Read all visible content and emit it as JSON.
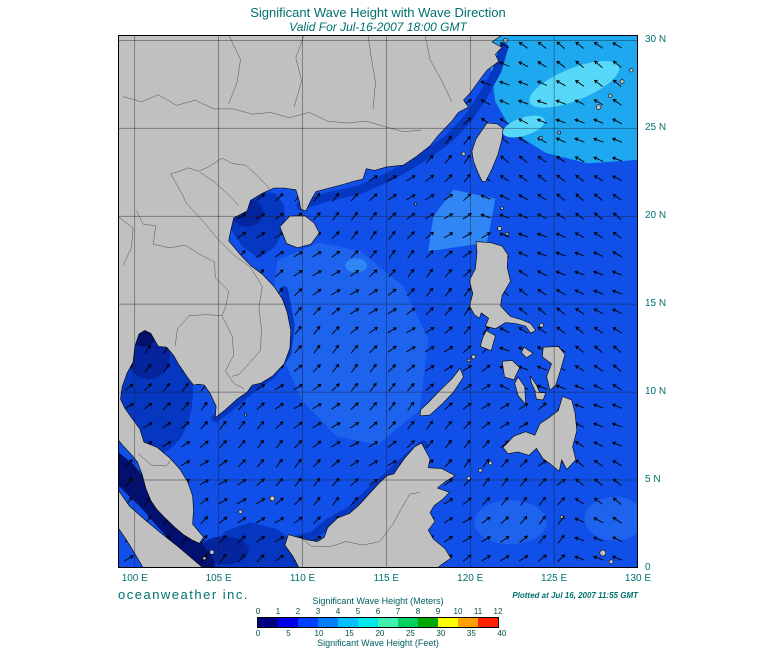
{
  "header": {
    "title": "Significant Wave Height with Wave Direction",
    "subtitle": "Valid For Jul-16-2007 18:00 GMT"
  },
  "map": {
    "lat_labels": [
      "30 N",
      "25 N",
      "20 N",
      "15 N",
      "10 N",
      "5 N",
      "0"
    ],
    "lat_values": [
      30,
      25,
      20,
      15,
      10,
      5,
      0
    ],
    "lon_labels": [
      "100 E",
      "105 E",
      "110 E",
      "115 E",
      "120 E",
      "125 E",
      "130 E"
    ],
    "lon_values": [
      100,
      105,
      110,
      115,
      120,
      125,
      130
    ]
  },
  "footer": {
    "branding": "oceanweather inc.",
    "plotted": "Plotted at Jul 16, 2007 11:55 GMT"
  },
  "colorbar": {
    "title_meters": "Significant Wave Height (Meters)",
    "title_feet": "Significant Wave Height (Feet)",
    "meters_ticks": [
      "0",
      "1",
      "2",
      "3",
      "4",
      "5",
      "6",
      "7",
      "8",
      "9",
      "10",
      "11",
      "12"
    ],
    "feet_ticks": [
      "0",
      "5",
      "10",
      "15",
      "20",
      "25",
      "30",
      "35",
      "40"
    ],
    "colors": [
      "#000080",
      "#0000e8",
      "#0040ff",
      "#0080ff",
      "#00c0ff",
      "#00e8e8",
      "#40f0b0",
      "#00d060",
      "#00a800",
      "#ffff00",
      "#ffa000",
      "#ff2000"
    ]
  },
  "theme": {
    "accent": "#007070",
    "land": "#c0c0c0",
    "ocean_base": "#1050e8",
    "light_soft": "#1e63ee",
    "light_mid": "#2f86f4",
    "cyan_area": "#1ea8f0",
    "cyan_bright": "#58d8f8",
    "coast_dark": "#0637c0",
    "gulf_dark": "#04259e",
    "strait_navy": "#021070",
    "grid": "#1a1a1a",
    "arrow": "#000000"
  }
}
